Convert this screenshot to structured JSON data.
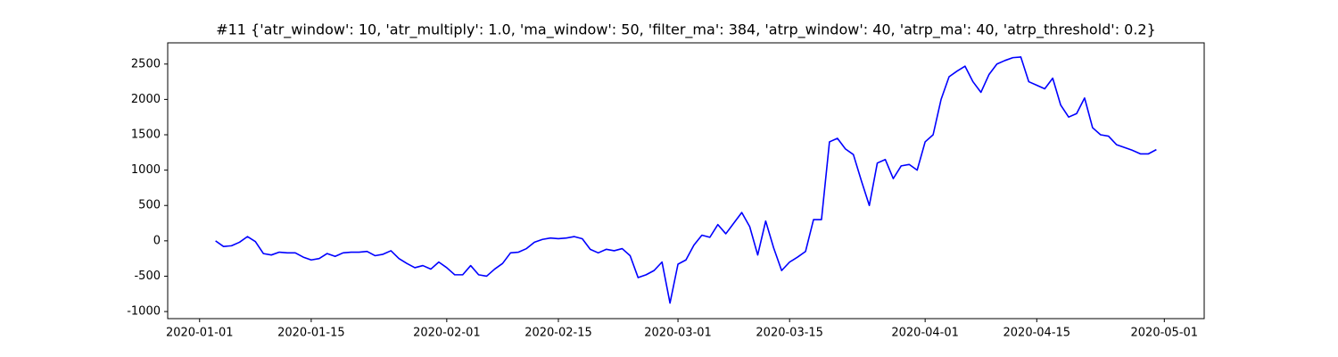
{
  "chart_data": {
    "type": "line",
    "title": "#11 {'atr_window': 10, 'atr_multiply': 1.0, 'ma_window': 50, 'filter_ma': 384, 'atrp_window': 40, 'atrp_ma': 40, 'atrp_threshold': 0.2}",
    "x": [
      "2020-01-03",
      "2020-01-04",
      "2020-01-05",
      "2020-01-06",
      "2020-01-07",
      "2020-01-08",
      "2020-01-09",
      "2020-01-10",
      "2020-01-11",
      "2020-01-12",
      "2020-01-13",
      "2020-01-14",
      "2020-01-15",
      "2020-01-16",
      "2020-01-17",
      "2020-01-18",
      "2020-01-19",
      "2020-01-20",
      "2020-01-21",
      "2020-01-22",
      "2020-01-23",
      "2020-01-24",
      "2020-01-25",
      "2020-01-26",
      "2020-01-27",
      "2020-01-28",
      "2020-01-29",
      "2020-01-30",
      "2020-01-31",
      "2020-02-01",
      "2020-02-02",
      "2020-02-03",
      "2020-02-04",
      "2020-02-05",
      "2020-02-06",
      "2020-02-07",
      "2020-02-08",
      "2020-02-09",
      "2020-02-10",
      "2020-02-11",
      "2020-02-12",
      "2020-02-13",
      "2020-02-14",
      "2020-02-15",
      "2020-02-16",
      "2020-02-17",
      "2020-02-18",
      "2020-02-19",
      "2020-02-20",
      "2020-02-21",
      "2020-02-22",
      "2020-02-23",
      "2020-02-24",
      "2020-02-25",
      "2020-02-26",
      "2020-02-27",
      "2020-02-28",
      "2020-02-29",
      "2020-03-01",
      "2020-03-02",
      "2020-03-03",
      "2020-03-04",
      "2020-03-05",
      "2020-03-06",
      "2020-03-07",
      "2020-03-08",
      "2020-03-09",
      "2020-03-10",
      "2020-03-11",
      "2020-03-12",
      "2020-03-13",
      "2020-03-14",
      "2020-03-15",
      "2020-03-16",
      "2020-03-17",
      "2020-03-18",
      "2020-03-19",
      "2020-03-20",
      "2020-03-21",
      "2020-03-22",
      "2020-03-23",
      "2020-03-24",
      "2020-03-25",
      "2020-03-26",
      "2020-03-27",
      "2020-03-28",
      "2020-03-29",
      "2020-03-30",
      "2020-03-31",
      "2020-04-01",
      "2020-04-02",
      "2020-04-03",
      "2020-04-04",
      "2020-04-05",
      "2020-04-06",
      "2020-04-07",
      "2020-04-08",
      "2020-04-09",
      "2020-04-10",
      "2020-04-11",
      "2020-04-12",
      "2020-04-13",
      "2020-04-14",
      "2020-04-15",
      "2020-04-16",
      "2020-04-17",
      "2020-04-18",
      "2020-04-19",
      "2020-04-20",
      "2020-04-21",
      "2020-04-22",
      "2020-04-23",
      "2020-04-24",
      "2020-04-25",
      "2020-04-26",
      "2020-04-27",
      "2020-04-28",
      "2020-04-29",
      "2020-04-30"
    ],
    "series": [
      {
        "color": "#0000ff",
        "values": [
          0,
          -80,
          -70,
          -20,
          60,
          -10,
          -180,
          -200,
          -160,
          -170,
          -170,
          -230,
          -270,
          -250,
          -180,
          -220,
          -170,
          -160,
          -160,
          -150,
          -210,
          -190,
          -140,
          -250,
          -320,
          -380,
          -350,
          -400,
          -300,
          -380,
          -480,
          -480,
          -350,
          -480,
          -500,
          -400,
          -320,
          -170,
          -160,
          -110,
          -20,
          20,
          40,
          30,
          40,
          60,
          30,
          -120,
          -170,
          -120,
          -140,
          -110,
          -210,
          -520,
          -480,
          -420,
          -300,
          -880,
          -330,
          -270,
          -60,
          80,
          50,
          230,
          100,
          250,
          400,
          200,
          -200,
          280,
          -100,
          -420,
          -300,
          -230,
          -150,
          300,
          300,
          1400,
          1450,
          1300,
          1220,
          850,
          500,
          1100,
          1150,
          880,
          1060,
          1080,
          1000,
          1400,
          1500,
          2000,
          2320,
          2400,
          2470,
          2250,
          2100,
          2350,
          2500,
          2550,
          2590,
          2600,
          2250,
          2200,
          2150,
          2300,
          1920,
          1750,
          1800,
          2020,
          1600,
          1500,
          1480,
          1360,
          1320,
          1280,
          1230,
          1230,
          1290
        ]
      }
    ],
    "xlim": [
      "2019-12-28",
      "2020-05-06"
    ],
    "xticks": [
      "2020-01-01",
      "2020-01-15",
      "2020-02-01",
      "2020-02-15",
      "2020-03-01",
      "2020-03-15",
      "2020-04-01",
      "2020-04-15",
      "2020-05-01"
    ],
    "ylim": [
      -1100,
      2800
    ],
    "yticks": [
      -1000,
      -500,
      0,
      500,
      1000,
      1500,
      2000,
      2500
    ]
  }
}
